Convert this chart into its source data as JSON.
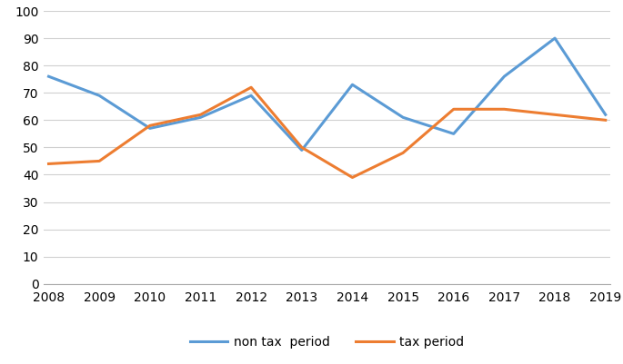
{
  "years": [
    2008,
    2009,
    2010,
    2011,
    2012,
    2013,
    2014,
    2015,
    2016,
    2017,
    2018,
    2019
  ],
  "non_tax_period": [
    76,
    69,
    57,
    61,
    69,
    49,
    73,
    61,
    55,
    76,
    90,
    62
  ],
  "tax_period": [
    44,
    45,
    58,
    62,
    72,
    50,
    39,
    48,
    64,
    64,
    62,
    60
  ],
  "non_tax_color": "#5b9bd5",
  "tax_color": "#ed7d31",
  "legend_labels": [
    "non tax  period",
    "tax period"
  ],
  "ylim": [
    0,
    100
  ],
  "yticks": [
    0,
    10,
    20,
    30,
    40,
    50,
    60,
    70,
    80,
    90,
    100
  ],
  "background_color": "#ffffff",
  "grid_color": "#d0d0d0",
  "line_width": 2.2,
  "tick_fontsize": 10,
  "legend_fontsize": 10
}
